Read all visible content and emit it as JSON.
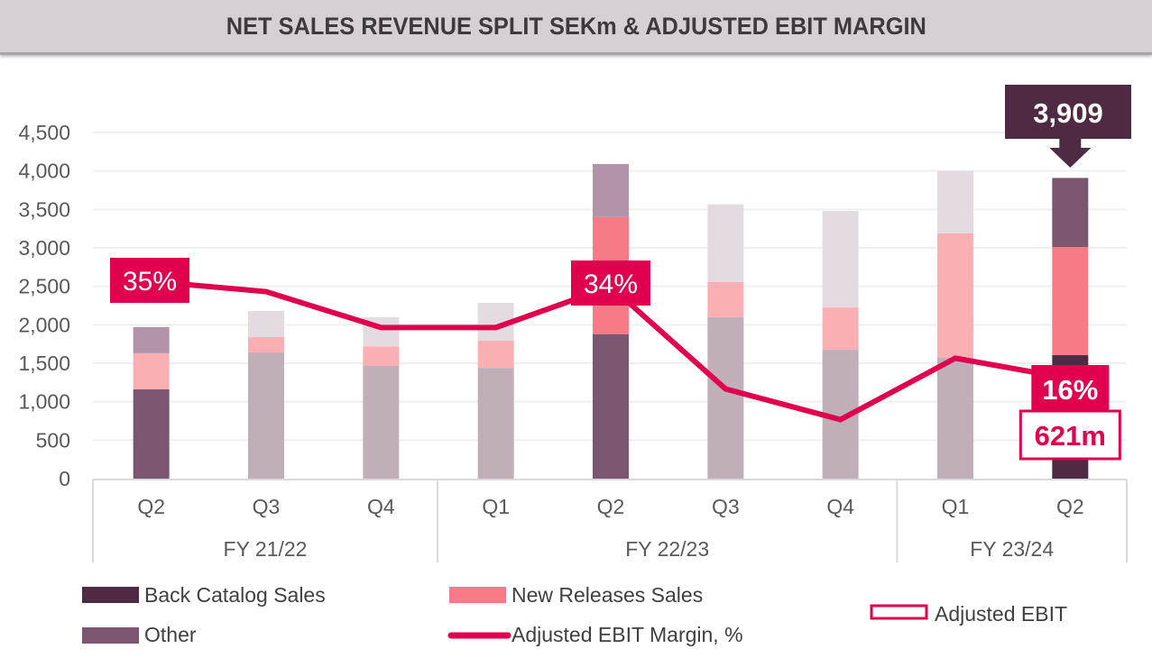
{
  "title": "NET SALES REVENUE SPLIT SEKm & ADJUSTED EBIT MARGIN",
  "colors": {
    "back_catalog_highlight": "#7a5670",
    "back_catalog_latest": "#4f2a43",
    "back_catalog_muted": "#c0afb8",
    "new_releases_highlight": "#f67b87",
    "new_releases_muted": "#fab0b2",
    "other_highlight": "#b393a8",
    "other_latest": "#7a5670",
    "other_muted": "#e4dae2",
    "margin_line": "#e0004d",
    "callout_dark": "#4f2a43",
    "grid": "#efefef",
    "axis": "#d9d9d9"
  },
  "chart_data": {
    "type": "bar",
    "stacked": true,
    "title": "NET SALES REVENUE SPLIT SEKm & ADJUSTED EBIT MARGIN",
    "xlabel": "",
    "ylabel": "",
    "ylim": [
      0,
      4500
    ],
    "yticks": [
      "0",
      "500",
      "1,000",
      "1,500",
      "2,000",
      "2,500",
      "3,000",
      "3,500",
      "4,000",
      "4,500"
    ],
    "ytick_values": [
      0,
      500,
      1000,
      1500,
      2000,
      2500,
      3000,
      3500,
      4000,
      4500
    ],
    "grid": true,
    "categories": [
      "Q2",
      "Q3",
      "Q4",
      "Q1",
      "Q2",
      "Q3",
      "Q4",
      "Q1",
      "Q2"
    ],
    "groups": [
      {
        "label": "FY 21/22",
        "count": 3
      },
      {
        "label": "FY 22/23",
        "count": 4
      },
      {
        "label": "FY 23/24",
        "count": 2
      }
    ],
    "highlight": [
      "strong",
      "muted",
      "muted",
      "muted",
      "strong",
      "muted",
      "muted",
      "muted",
      "latest"
    ],
    "series": [
      {
        "name": "Back Catalog Sales",
        "values": [
          1160,
          1640,
          1465,
          1440,
          1875,
          2100,
          1675,
          1570,
          1605
        ]
      },
      {
        "name": "New Releases Sales",
        "values": [
          470,
          200,
          255,
          355,
          1525,
          455,
          550,
          1620,
          1405
        ]
      },
      {
        "name": "Other",
        "values": [
          340,
          340,
          380,
          490,
          690,
          1010,
          1255,
          810,
          899
        ]
      }
    ],
    "line_series": {
      "name": "Adjusted EBIT Margin, %",
      "values": [
        35,
        33,
        26,
        26,
        34,
        14,
        8,
        20,
        16
      ],
      "unit": "%",
      "labels": [
        {
          "index": 0,
          "text": "35%"
        },
        {
          "index": 4,
          "text": "34%"
        },
        {
          "index": 8,
          "text": "16%"
        }
      ]
    },
    "callouts": {
      "total_latest": "3,909",
      "adjusted_ebit_latest": "621m"
    },
    "legend": [
      {
        "label": "Back Catalog Sales",
        "swatch": "bar-dark"
      },
      {
        "label": "New Releases Sales",
        "swatch": "bar-pink"
      },
      {
        "label": "Adjusted EBIT",
        "swatch": "outline-box"
      },
      {
        "label": "Other",
        "swatch": "bar-mauve"
      },
      {
        "label": "Adjusted EBIT Margin, %",
        "swatch": "line"
      }
    ],
    "legend_position": "bottom"
  }
}
